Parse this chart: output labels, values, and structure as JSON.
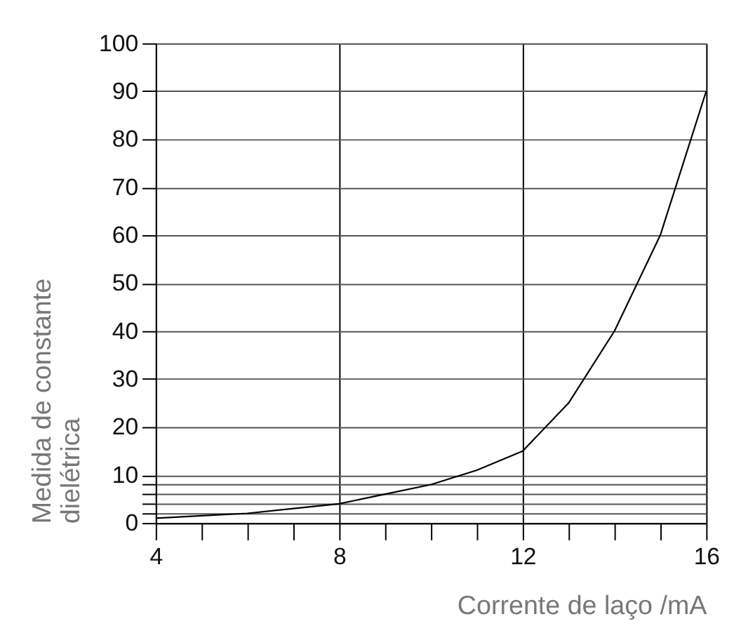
{
  "chart_data": {
    "type": "line",
    "xlabel": "Corrente de laço  /mA",
    "ylabel": "Medida  de constante\ndielétrica",
    "x": [
      4,
      5,
      6,
      7,
      8,
      9,
      10,
      11,
      12,
      13,
      14,
      15,
      16
    ],
    "series": [
      {
        "color": "#000000",
        "values": [
          1,
          1.5,
          2,
          3,
          4,
          6,
          8,
          11,
          15,
          25,
          40,
          60,
          90
        ]
      }
    ],
    "xlim": [
      4,
      16
    ],
    "ylim": [
      0,
      100
    ],
    "xticks": [
      4,
      {
        "value": 5,
        "label": null
      },
      {
        "value": 6,
        "label": null
      },
      {
        "value": 7,
        "label": null
      },
      8,
      {
        "value": 9,
        "label": null
      },
      {
        "value": 10,
        "label": null
      },
      {
        "value": 11,
        "label": null
      },
      12,
      {
        "value": 13,
        "label": null
      },
      {
        "value": 14,
        "label": null
      },
      {
        "value": 15,
        "label": null
      },
      16
    ],
    "yticks": [
      0,
      {
        "value": 2,
        "label": null
      },
      {
        "value": 4,
        "label": null
      },
      {
        "value": 6,
        "label": null
      },
      {
        "value": 8,
        "label": null
      },
      10,
      20,
      30,
      40,
      50,
      60,
      70,
      80,
      90,
      100
    ],
    "grid": true,
    "marker": "none",
    "line_style": "solid"
  }
}
